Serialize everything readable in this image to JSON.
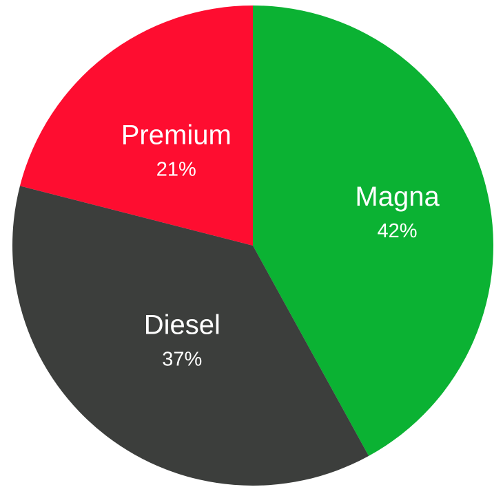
{
  "chart_data": {
    "type": "pie",
    "title": "",
    "legend": "none",
    "slices": [
      {
        "label": "Magna",
        "value": 42,
        "value_label": "42%",
        "color": "#0bb233"
      },
      {
        "label": "Diesel",
        "value": 37,
        "value_label": "37%",
        "color": "#3c3e3c"
      },
      {
        "label": "Premium",
        "value": 21,
        "value_label": "21%",
        "color": "#fe0d30"
      }
    ]
  }
}
